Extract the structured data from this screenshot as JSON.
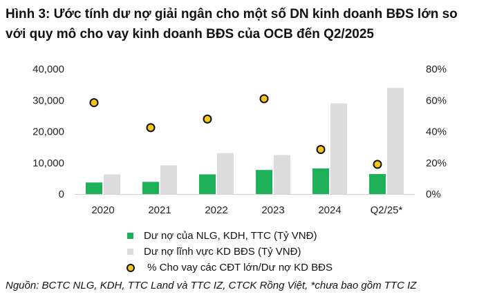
{
  "title": "Hình 3: Ước tính dư nợ giải ngân cho một số DN kinh doanh BĐS lớn so với quy mô cho vay kinh doanh BĐS của OCB đến Q2/2025",
  "source": "Nguồn: BCTC NLG, KDH, TTC Land và TTC IZ, CTCK Rồng Việt, *chưa bao gồm TTC IZ",
  "legend": {
    "series1": "Dư nợ của NLG, KDH, TTC (Tỷ VNĐ)",
    "series2": "Dư nợ lĩnh vực KD BĐS (Tỷ VNĐ)",
    "series3": " % Cho vay các CĐT lớn/Dư nợ KD BĐS"
  },
  "colors": {
    "series1": "#1eb15a",
    "series2": "#dcdcdc",
    "dot_fill": "#f5c518",
    "dot_stroke": "#111111"
  },
  "chart_data": {
    "type": "bar",
    "categories": [
      "2020",
      "2021",
      "2022",
      "2023",
      "2024",
      "Q2/25*"
    ],
    "series": [
      {
        "name": "Dư nợ của NLG, KDH, TTC (Tỷ VNĐ)",
        "type": "bar",
        "axis": "left",
        "values": [
          3700,
          3900,
          6300,
          7700,
          8200,
          6400
        ]
      },
      {
        "name": "Dư nợ lĩnh vực KD BĐS (Tỷ VNĐ)",
        "type": "bar",
        "axis": "left",
        "values": [
          6300,
          9200,
          13100,
          12500,
          29000,
          34000
        ]
      },
      {
        "name": " % Cho vay các CĐT lớn/Dư nợ KD BĐS",
        "type": "scatter",
        "axis": "right",
        "values": [
          58.5,
          42.5,
          48,
          61,
          28.5,
          19
        ]
      }
    ],
    "ylim_left": [
      0,
      40000
    ],
    "ylim_right": [
      0,
      80
    ],
    "yticks_left": [
      "0",
      "10,000",
      "20,000",
      "30,000",
      "40,000"
    ],
    "yticks_right": [
      "0%",
      "20%",
      "40%",
      "60%",
      "80%"
    ],
    "grid": false,
    "legend_position": "bottom"
  }
}
